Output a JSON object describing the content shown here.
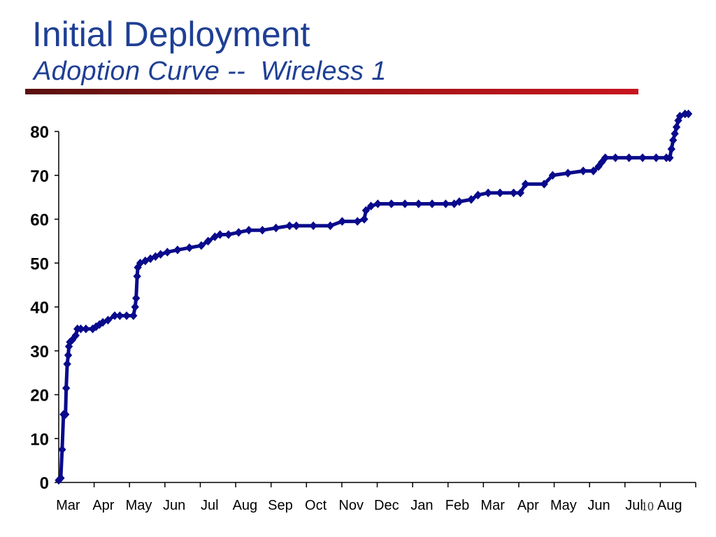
{
  "slide": {
    "title": "Initial Deployment",
    "subtitle": "Adoption Curve --  Wireless 1",
    "slide_number": "10",
    "colors": {
      "title": "#1f3f94",
      "rule": "#c8141e",
      "series": "#0a0a8c"
    }
  },
  "chart_data": {
    "type": "line",
    "title": "",
    "xlabel": "",
    "ylabel": "",
    "ylim": [
      0,
      80
    ],
    "yticks": [
      0,
      10,
      20,
      30,
      40,
      50,
      60,
      70,
      80
    ],
    "x_categories": [
      "Mar",
      "Apr",
      "May",
      "Jun",
      "Jul",
      "Aug",
      "Sep",
      "Oct",
      "Nov",
      "Dec",
      "Jan",
      "Feb",
      "Mar",
      "Apr",
      "May",
      "Jun",
      "Jul",
      "Aug"
    ],
    "grid": false,
    "legend": "none",
    "series": [
      {
        "color": "#0a0a8c",
        "points": [
          [
            0.0,
            0.5
          ],
          [
            0.06,
            1
          ],
          [
            0.1,
            7.5
          ],
          [
            0.14,
            15.5
          ],
          [
            0.2,
            15.5
          ],
          [
            0.22,
            21.5
          ],
          [
            0.25,
            27
          ],
          [
            0.28,
            29
          ],
          [
            0.3,
            31
          ],
          [
            0.33,
            32
          ],
          [
            0.4,
            32.5
          ],
          [
            0.5,
            33.5
          ],
          [
            0.55,
            35
          ],
          [
            0.65,
            35
          ],
          [
            0.8,
            35
          ],
          [
            1.0,
            35
          ],
          [
            1.1,
            35.5
          ],
          [
            1.2,
            36
          ],
          [
            1.3,
            36.5
          ],
          [
            1.45,
            37
          ],
          [
            1.65,
            38
          ],
          [
            1.8,
            38
          ],
          [
            2.0,
            38
          ],
          [
            2.2,
            38
          ],
          [
            2.25,
            40
          ],
          [
            2.28,
            42
          ],
          [
            2.31,
            47
          ],
          [
            2.33,
            49
          ],
          [
            2.4,
            50
          ],
          [
            2.55,
            50.5
          ],
          [
            2.7,
            51
          ],
          [
            2.85,
            51.5
          ],
          [
            3.0,
            52
          ],
          [
            3.2,
            52.5
          ],
          [
            3.5,
            53
          ],
          [
            3.85,
            53.5
          ],
          [
            4.2,
            54
          ],
          [
            4.4,
            55
          ],
          [
            4.6,
            56
          ],
          [
            4.75,
            56.5
          ],
          [
            5.0,
            56.5
          ],
          [
            5.3,
            57
          ],
          [
            5.6,
            57.5
          ],
          [
            6.0,
            57.5
          ],
          [
            6.4,
            58
          ],
          [
            6.8,
            58.5
          ],
          [
            7.0,
            58.5
          ],
          [
            7.5,
            58.5
          ],
          [
            8.0,
            58.5
          ],
          [
            8.35,
            59.5
          ],
          [
            8.8,
            59.5
          ],
          [
            9.0,
            60
          ],
          [
            9.05,
            62
          ],
          [
            9.2,
            63
          ],
          [
            9.4,
            63.5
          ],
          [
            9.8,
            63.5
          ],
          [
            10.2,
            63.5
          ],
          [
            10.6,
            63.5
          ],
          [
            11.0,
            63.5
          ],
          [
            11.4,
            63.5
          ],
          [
            11.65,
            63.5
          ],
          [
            11.8,
            64
          ],
          [
            12.15,
            64.5
          ],
          [
            12.35,
            65.5
          ],
          [
            12.65,
            66
          ],
          [
            13.0,
            66
          ],
          [
            13.4,
            66
          ],
          [
            13.6,
            66
          ],
          [
            13.75,
            68
          ],
          [
            14.3,
            68
          ],
          [
            14.55,
            70
          ],
          [
            15.0,
            70.5
          ],
          [
            15.45,
            71
          ],
          [
            15.75,
            71
          ],
          [
            15.9,
            72
          ],
          [
            16.0,
            73
          ],
          [
            16.1,
            74
          ],
          [
            16.4,
            74
          ],
          [
            16.8,
            74
          ],
          [
            17.2,
            74
          ],
          [
            17.6,
            74
          ],
          [
            17.9,
            74
          ],
          [
            18.0,
            74
          ],
          [
            18.05,
            76
          ],
          [
            18.1,
            78
          ],
          [
            18.15,
            79.5
          ],
          [
            18.2,
            81
          ],
          [
            18.25,
            82.5
          ],
          [
            18.3,
            83.5
          ],
          [
            18.45,
            84
          ],
          [
            18.55,
            84
          ]
        ]
      }
    ]
  }
}
